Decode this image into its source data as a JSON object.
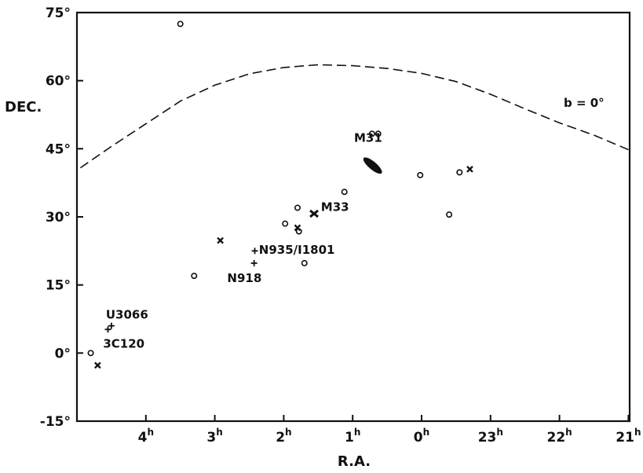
{
  "chart_data": {
    "type": "scatter",
    "title": "",
    "xlabel": "R.A.",
    "ylabel": "DEC.",
    "xlim_hours": [
      4.95,
      21.0
    ],
    "ylim_deg": [
      -15,
      75
    ],
    "x_axis_reversed": true,
    "x_ticks": [
      {
        "h": 4,
        "label": "4",
        "sup": "h"
      },
      {
        "h": 3,
        "label": "3",
        "sup": "h"
      },
      {
        "h": 2,
        "label": "2",
        "sup": "h"
      },
      {
        "h": 1,
        "label": "1",
        "sup": "h"
      },
      {
        "h": 0,
        "label": "0",
        "sup": "h"
      },
      {
        "h": 23,
        "label": "23",
        "sup": "h"
      },
      {
        "h": 22,
        "label": "22",
        "sup": "h"
      },
      {
        "h": 21,
        "label": "21",
        "sup": "h"
      }
    ],
    "y_ticks": [
      {
        "v": 75,
        "label": "75°"
      },
      {
        "v": 60,
        "label": "60°"
      },
      {
        "v": 45,
        "label": "45°"
      },
      {
        "v": 30,
        "label": "30°"
      },
      {
        "v": 15,
        "label": "15°"
      },
      {
        "v": 0,
        "label": "0°"
      },
      {
        "v": -15,
        "label": "-15°"
      }
    ],
    "grid": false,
    "galactic_plane": {
      "label": "b = 0°",
      "style": "dashed",
      "points": [
        [
          4.95,
          40.8
        ],
        [
          4.5,
          45.5
        ],
        [
          4.0,
          50.5
        ],
        [
          3.5,
          55.5
        ],
        [
          3.0,
          59.0
        ],
        [
          2.5,
          61.5
        ],
        [
          2.0,
          62.9
        ],
        [
          1.5,
          63.5
        ],
        [
          1.0,
          63.3
        ],
        [
          0.5,
          62.7
        ],
        [
          0.0,
          61.6
        ],
        [
          23.5,
          59.8
        ],
        [
          23.0,
          57.0
        ],
        [
          22.5,
          53.8
        ],
        [
          22.0,
          50.7
        ],
        [
          21.5,
          48.0
        ],
        [
          21.0,
          44.8
        ]
      ]
    },
    "series": [
      {
        "marker": "circle",
        "points": [
          [
            4.8,
            0.0
          ],
          [
            3.5,
            72.5
          ],
          [
            3.3,
            17.0
          ],
          [
            1.98,
            28.5
          ],
          [
            1.8,
            32.0
          ],
          [
            1.78,
            26.8
          ],
          [
            1.7,
            19.8
          ],
          [
            1.12,
            35.5
          ],
          [
            0.72,
            48.3
          ],
          [
            0.63,
            48.3
          ],
          [
            0.02,
            39.2
          ],
          [
            23.6,
            30.5
          ],
          [
            23.45,
            39.8
          ]
        ]
      },
      {
        "marker": "x",
        "points": [
          [
            4.7,
            -2.7
          ],
          [
            2.92,
            24.8
          ],
          [
            1.8,
            27.6
          ],
          [
            23.3,
            40.5
          ]
        ]
      },
      {
        "marker": "plus",
        "points": [
          [
            4.55,
            5.2
          ],
          [
            4.5,
            6.0
          ],
          [
            2.42,
            22.5
          ],
          [
            2.43,
            19.8
          ]
        ]
      }
    ],
    "galaxies": [
      {
        "name": "M31",
        "ra_h": 0.71,
        "dec": 41.3
      },
      {
        "name": "M33",
        "ra_h": 1.56,
        "dec": 30.7
      }
    ],
    "annotations": [
      {
        "text": "M31",
        "ra_h": 0.98,
        "dec": 46.5
      },
      {
        "text": "M33",
        "ra_h": 1.46,
        "dec": 31.3
      },
      {
        "text": "N935/I1801",
        "ra_h": 2.36,
        "dec": 21.9
      },
      {
        "text": "N918",
        "ra_h": 2.82,
        "dec": 15.6
      },
      {
        "text": "U3066",
        "ra_h": 4.58,
        "dec": 7.6
      },
      {
        "text": "3C120",
        "ra_h": 4.62,
        "dec": 1.2
      }
    ]
  }
}
